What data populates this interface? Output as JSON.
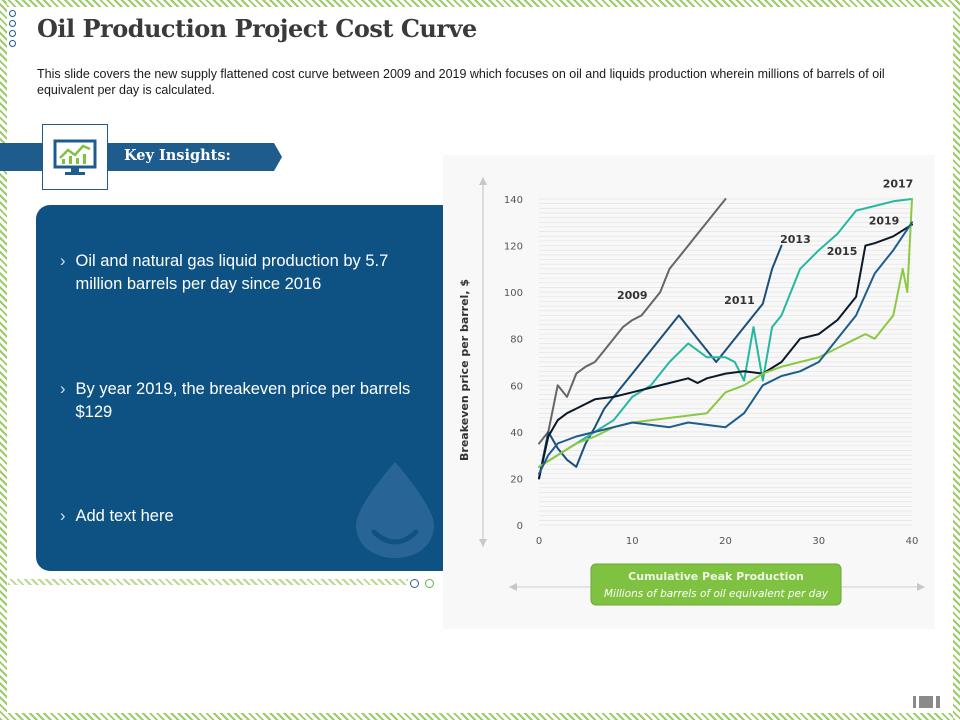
{
  "title": "Oil Production Project Cost Curve",
  "subtitle": "This slide covers the new supply flattened cost curve between 2009 and 2019 which focuses on oil and liquids production wherein millions of barrels of oil equivalent per day is calculated.",
  "insights_heading": "Key Insights:",
  "insights": [
    "Oil and natural gas liquid production by 5.7 million barrels per day since 2016",
    "By year 2019, the breakeven price per barrels $129",
    "Add text here"
  ],
  "colors": {
    "primary": "#1f5c8e",
    "panel": "#0e5283",
    "accent_green": "#7fc241"
  },
  "icons": {
    "chart_monitor": "monitor-chart-icon",
    "oil_drop": "oil-drop-icon"
  },
  "chart_data": {
    "type": "line",
    "ylabel": "Breakeven price per barrel, $",
    "xlabel": "Cumulative Peak Production",
    "xlabel_sub": "Millions of barrels of oil equivalent per day",
    "xlim": [
      0,
      40
    ],
    "ylim": [
      0,
      140
    ],
    "xticks": [
      0,
      10,
      20,
      30,
      40
    ],
    "yticks": [
      0,
      20,
      40,
      60,
      80,
      100,
      120,
      140
    ],
    "series": [
      {
        "name": "2009",
        "color": "#666666",
        "x": [
          0,
          1,
          2,
          3,
          4,
          5,
          6,
          7,
          8,
          9,
          10,
          11,
          12,
          13,
          14,
          15,
          16,
          17,
          18,
          19,
          20
        ],
        "y": [
          35,
          40,
          60,
          55,
          65,
          68,
          70,
          75,
          80,
          85,
          88,
          90,
          95,
          100,
          110,
          115,
          120,
          125,
          130,
          135,
          140
        ]
      },
      {
        "name": "2011",
        "color": "#1a4f7a",
        "x": [
          0,
          1,
          2,
          3,
          4,
          5,
          6,
          7,
          8,
          9,
          10,
          11,
          12,
          13,
          14,
          15,
          16,
          17,
          18,
          19,
          20,
          21,
          22,
          23,
          24,
          25,
          26
        ],
        "y": [
          20,
          40,
          33,
          28,
          25,
          35,
          42,
          50,
          55,
          60,
          65,
          70,
          75,
          80,
          85,
          90,
          85,
          80,
          75,
          70,
          75,
          80,
          85,
          90,
          95,
          110,
          120
        ]
      },
      {
        "name": "2013",
        "color": "#25b8a0",
        "x": [
          0,
          2,
          4,
          6,
          8,
          10,
          12,
          14,
          16,
          18,
          20,
          21,
          22,
          23,
          24,
          25,
          26,
          28,
          30,
          32,
          34,
          36,
          38,
          40
        ],
        "y": [
          25,
          30,
          35,
          40,
          45,
          55,
          60,
          70,
          78,
          72,
          72,
          70,
          62,
          85,
          62,
          85,
          90,
          110,
          118,
          125,
          135,
          137,
          139,
          140
        ]
      },
      {
        "name": "2015",
        "color": "#0b1a28",
        "x": [
          0,
          1,
          2,
          3,
          4,
          6,
          8,
          10,
          12,
          14,
          16,
          17,
          18,
          20,
          22,
          24,
          26,
          28,
          30,
          32,
          34,
          35,
          36,
          38,
          40
        ],
        "y": [
          20,
          38,
          45,
          48,
          50,
          54,
          55,
          57,
          59,
          61,
          63,
          61,
          63,
          65,
          66,
          65,
          70,
          80,
          82,
          88,
          98,
          120,
          121,
          124,
          129
        ]
      },
      {
        "name": "2017",
        "color": "#8bc940",
        "x": [
          0,
          2,
          4,
          6,
          8,
          10,
          12,
          14,
          16,
          18,
          20,
          22,
          24,
          26,
          28,
          30,
          32,
          34,
          35,
          36,
          38,
          39,
          39.5,
          40
        ],
        "y": [
          25,
          30,
          35,
          38,
          42,
          44,
          45,
          46,
          47,
          48,
          57,
          60,
          65,
          68,
          70,
          72,
          76,
          80,
          82,
          80,
          90,
          110,
          100,
          140
        ]
      },
      {
        "name": "2019",
        "color": "#1d5d8c",
        "x": [
          0,
          1,
          2,
          4,
          6,
          8,
          10,
          12,
          14,
          16,
          18,
          20,
          22,
          24,
          26,
          28,
          30,
          32,
          34,
          36,
          38,
          40
        ],
        "y": [
          22,
          30,
          35,
          38,
          40,
          42,
          44,
          43,
          42,
          44,
          43,
          42,
          48,
          60,
          64,
          66,
          70,
          80,
          90,
          108,
          118,
          130
        ]
      }
    ],
    "annotations": [
      {
        "text": "2009",
        "x": 10,
        "y": 97
      },
      {
        "text": "2011",
        "x": 21.5,
        "y": 95
      },
      {
        "text": "2013",
        "x": 27.5,
        "y": 121
      },
      {
        "text": "2015",
        "x": 32.5,
        "y": 116
      },
      {
        "text": "2017",
        "x": 38.5,
        "y": 145
      },
      {
        "text": "2019",
        "x": 37,
        "y": 129
      }
    ],
    "grid": true
  }
}
